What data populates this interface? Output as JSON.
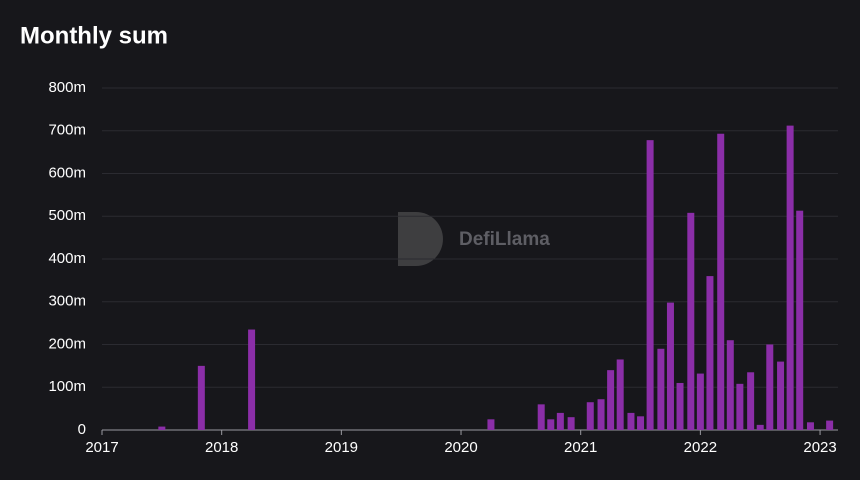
{
  "chart_data": {
    "type": "bar",
    "title": "Monthly sum",
    "watermark": "DefiLlama",
    "x": [
      2017.5,
      2017.83,
      2018.25,
      2020.25,
      2020.67,
      2020.75,
      2020.83,
      2020.92,
      2021.08,
      2021.17,
      2021.25,
      2021.33,
      2021.42,
      2021.5,
      2021.58,
      2021.67,
      2021.75,
      2021.83,
      2021.92,
      2022.0,
      2022.08,
      2022.17,
      2022.25,
      2022.33,
      2022.42,
      2022.5,
      2022.58,
      2022.67,
      2022.75,
      2022.83,
      2022.92,
      2023.08
    ],
    "values": [
      8,
      150,
      235,
      25,
      60,
      25,
      40,
      30,
      65,
      72,
      140,
      165,
      40,
      32,
      678,
      190,
      298,
      110,
      508,
      132,
      360,
      693,
      210,
      108,
      135,
      12,
      200,
      160,
      712,
      513,
      18,
      22
    ],
    "color": "#8b2ea8",
    "xlim": [
      2017,
      2023.15
    ],
    "xticks": [
      2017,
      2018,
      2019,
      2020,
      2021,
      2022,
      2023
    ],
    "ylim": [
      0,
      800
    ],
    "yticks": [
      0,
      {
        "value": 100,
        "label": "100m"
      },
      {
        "value": 200,
        "label": "200m"
      },
      {
        "value": 300,
        "label": "300m"
      },
      {
        "value": 400,
        "label": "400m"
      },
      {
        "value": 500,
        "label": "500m"
      },
      {
        "value": 600,
        "label": "600m"
      },
      {
        "value": 700,
        "label": "700m"
      },
      {
        "value": 800,
        "label": "800m"
      }
    ],
    "grid": true
  }
}
